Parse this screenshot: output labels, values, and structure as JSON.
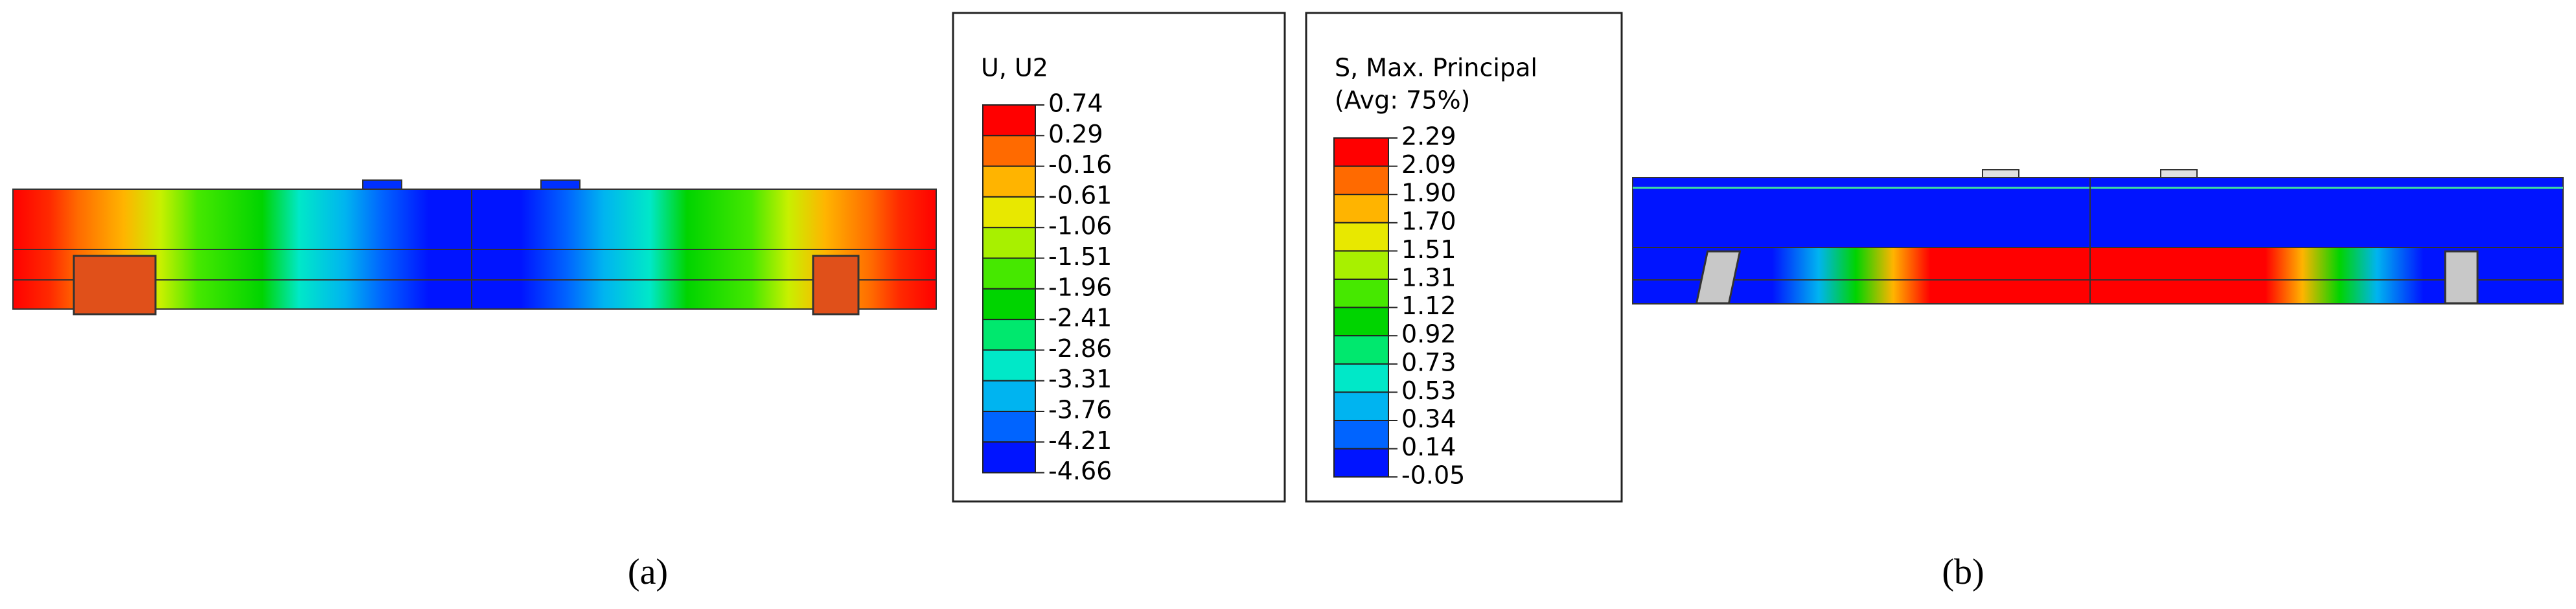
{
  "legends": [
    {
      "title_lines": [
        "U, U2"
      ],
      "labels": [
        "0.74",
        "0.29",
        "-0.16",
        "-0.61",
        "-1.06",
        "-1.51",
        "-1.96",
        "-2.41",
        "-2.86",
        "-3.31",
        "-3.76",
        "-4.21",
        "-4.66"
      ]
    },
    {
      "title_lines": [
        "S, Max. Principal",
        "(Avg: 75%)"
      ],
      "labels": [
        "2.29",
        "2.09",
        "1.90",
        "1.70",
        "1.51",
        "1.31",
        "1.12",
        "0.92",
        "0.73",
        "0.53",
        "0.34",
        "0.14",
        "-0.05"
      ]
    }
  ],
  "band_colors": [
    "#ff0000",
    "#ff6a00",
    "#ffb400",
    "#e8e800",
    "#a8f000",
    "#46e800",
    "#00d400",
    "#00e86e",
    "#00e8c8",
    "#00b4f0",
    "#0064ff",
    "#0014ff"
  ],
  "captions": [
    "(a)",
    "(b)"
  ]
}
